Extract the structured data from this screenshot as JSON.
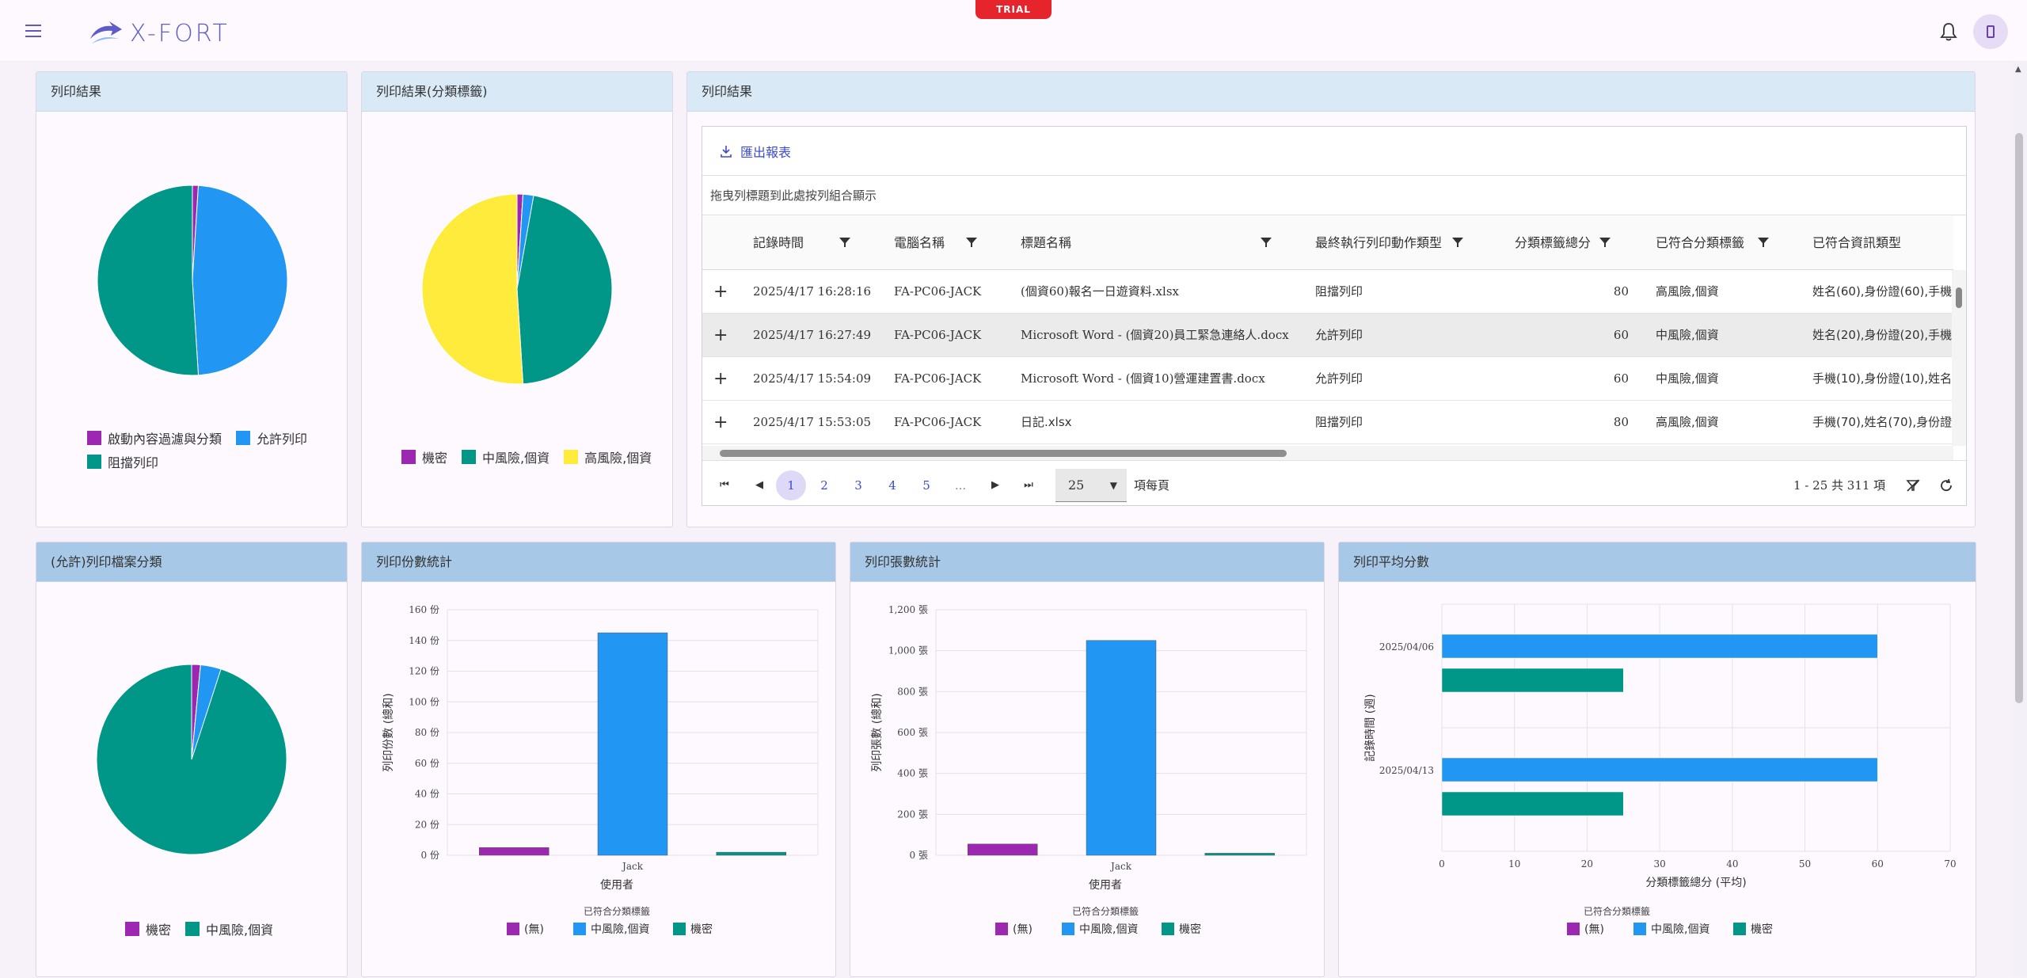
{
  "app": {
    "logo_text": "X-FORT",
    "trial_label": "TRIAL"
  },
  "colors": {
    "purple": "#9c27b0",
    "blue": "#2196f3",
    "teal": "#009688",
    "yellow": "#ffeb3b",
    "accent": "#3b4bd2"
  },
  "icons": {
    "menu": "menu-icon",
    "bell": "bell-icon",
    "user": "user-icon",
    "export": "download-icon",
    "filter": "filter-icon"
  },
  "panels": {
    "print_result_pie": {
      "title": "列印結果",
      "legend": [
        {
          "label": "啟動內容過濾與分類",
          "color": "#9c27b0"
        },
        {
          "label": "允許列印",
          "color": "#2196f3"
        },
        {
          "label": "阻擋列印",
          "color": "#009688"
        }
      ]
    },
    "print_result_tag_pie": {
      "title": "列印結果(分類標籤)",
      "legend": [
        {
          "label": "機密",
          "color": "#9c27b0"
        },
        {
          "label": "中風險,個資",
          "color": "#009688"
        },
        {
          "label": "高風險,個資",
          "color": "#ffeb3b"
        }
      ]
    },
    "allowed_file_pie": {
      "title": "(允許)列印檔案分類",
      "legend": [
        {
          "label": "機密",
          "color": "#9c27b0"
        },
        {
          "label": "中風險,個資",
          "color": "#009688"
        }
      ]
    },
    "grid": {
      "title": "列印結果",
      "export_label": "匯出報表",
      "group_hint": "拖曳列標題到此處按列組合顯示",
      "columns": [
        "記錄時間",
        "電腦名稱",
        "標題名稱",
        "最終執行列印動作類型",
        "分類標籤總分",
        "已符合分類標籤",
        "已符合資訊類型"
      ],
      "rows": [
        [
          "2025/4/17 16:28:16",
          "FA-PC06-JACK",
          "(個資60)報名一日遊資料.xlsx",
          "阻擋列印",
          "80",
          "高風險,個資",
          "姓名(60),身份證(60),手機"
        ],
        [
          "2025/4/17 16:27:49",
          "FA-PC06-JACK",
          "Microsoft Word - (個資20)員工緊急連絡人.docx",
          "允許列印",
          "60",
          "中風險,個資",
          "姓名(20),身份證(20),手機"
        ],
        [
          "2025/4/17 15:54:09",
          "FA-PC06-JACK",
          "Microsoft Word - (個資10)營運建置書.docx",
          "允許列印",
          "60",
          "中風險,個資",
          "手機(10),身份證(10),姓名"
        ],
        [
          "2025/4/17 15:53:05",
          "FA-PC06-JACK",
          "日記.xlsx",
          "阻擋列印",
          "80",
          "高風險,個資",
          "手機(70),姓名(70),身份證"
        ]
      ],
      "expand_symbol": "+",
      "pager": {
        "pages": [
          "1",
          "2",
          "3",
          "4",
          "5",
          "..."
        ],
        "page_size": "25",
        "page_size_label": "項每頁",
        "info": "1 - 25 共 311 項"
      }
    }
  },
  "chart_data": [
    {
      "type": "pie",
      "title": "列印結果",
      "series": [
        {
          "name": "啟動內容過濾與分類",
          "value": 1
        },
        {
          "name": "允許列印",
          "value": 48
        },
        {
          "name": "阻擋列印",
          "value": 51
        }
      ]
    },
    {
      "type": "pie",
      "title": "列印結果(分類標籤)",
      "series": [
        {
          "name": "機密",
          "value": 1
        },
        {
          "name": "中風險,個資",
          "value": 48
        },
        {
          "name": "高風險,個資",
          "value": 51
        }
      ]
    },
    {
      "type": "pie",
      "title": "(允許)列印檔案分類",
      "series": [
        {
          "name": "機密",
          "value": 1.5
        },
        {
          "name": "中風險,個資",
          "value": 98.5
        }
      ]
    },
    {
      "type": "bar",
      "title": "列印份數統計",
      "categories": [
        "Jack"
      ],
      "xlabel": "使用者",
      "ylabel": "列印份數 (總和)",
      "ylim": [
        0,
        160
      ],
      "yticks": [
        "0 份",
        "20 份",
        "40 份",
        "60 份",
        "80 份",
        "100 份",
        "120 份",
        "140 份",
        "160 份"
      ],
      "legend_title": "已符合分類標籤",
      "series": [
        {
          "name": "(無)",
          "values": [
            5
          ]
        },
        {
          "name": "中風險,個資",
          "values": [
            145
          ]
        },
        {
          "name": "機密",
          "values": [
            2
          ]
        }
      ]
    },
    {
      "type": "bar",
      "title": "列印張數統計",
      "categories": [
        "Jack"
      ],
      "xlabel": "使用者",
      "ylabel": "列印張數 (總和)",
      "ylim": [
        0,
        1200
      ],
      "yticks": [
        "0 張",
        "200 張",
        "400 張",
        "600 張",
        "800 張",
        "1,000 張",
        "1,200 張"
      ],
      "legend_title": "已符合分類標籤",
      "series": [
        {
          "name": "(無)",
          "values": [
            55
          ]
        },
        {
          "name": "中風險,個資",
          "values": [
            1050
          ]
        },
        {
          "name": "機密",
          "values": [
            10
          ]
        }
      ]
    },
    {
      "type": "bar",
      "orientation": "horizontal",
      "title": "列印平均分數",
      "categories": [
        "2025/04/06",
        "2025/04/13"
      ],
      "xlabel": "分類標籤總分 (平均)",
      "ylabel": "記錄時間 (週)",
      "xlim": [
        0,
        70
      ],
      "xticks": [
        "0",
        "10",
        "20",
        "30",
        "40",
        "50",
        "60",
        "70"
      ],
      "legend_title": "已符合分類標籤",
      "series": [
        {
          "name": "(無)",
          "values": [
            0,
            0
          ]
        },
        {
          "name": "中風險,個資",
          "values": [
            60,
            60
          ]
        },
        {
          "name": "機密",
          "values": [
            25,
            25
          ]
        }
      ]
    }
  ]
}
